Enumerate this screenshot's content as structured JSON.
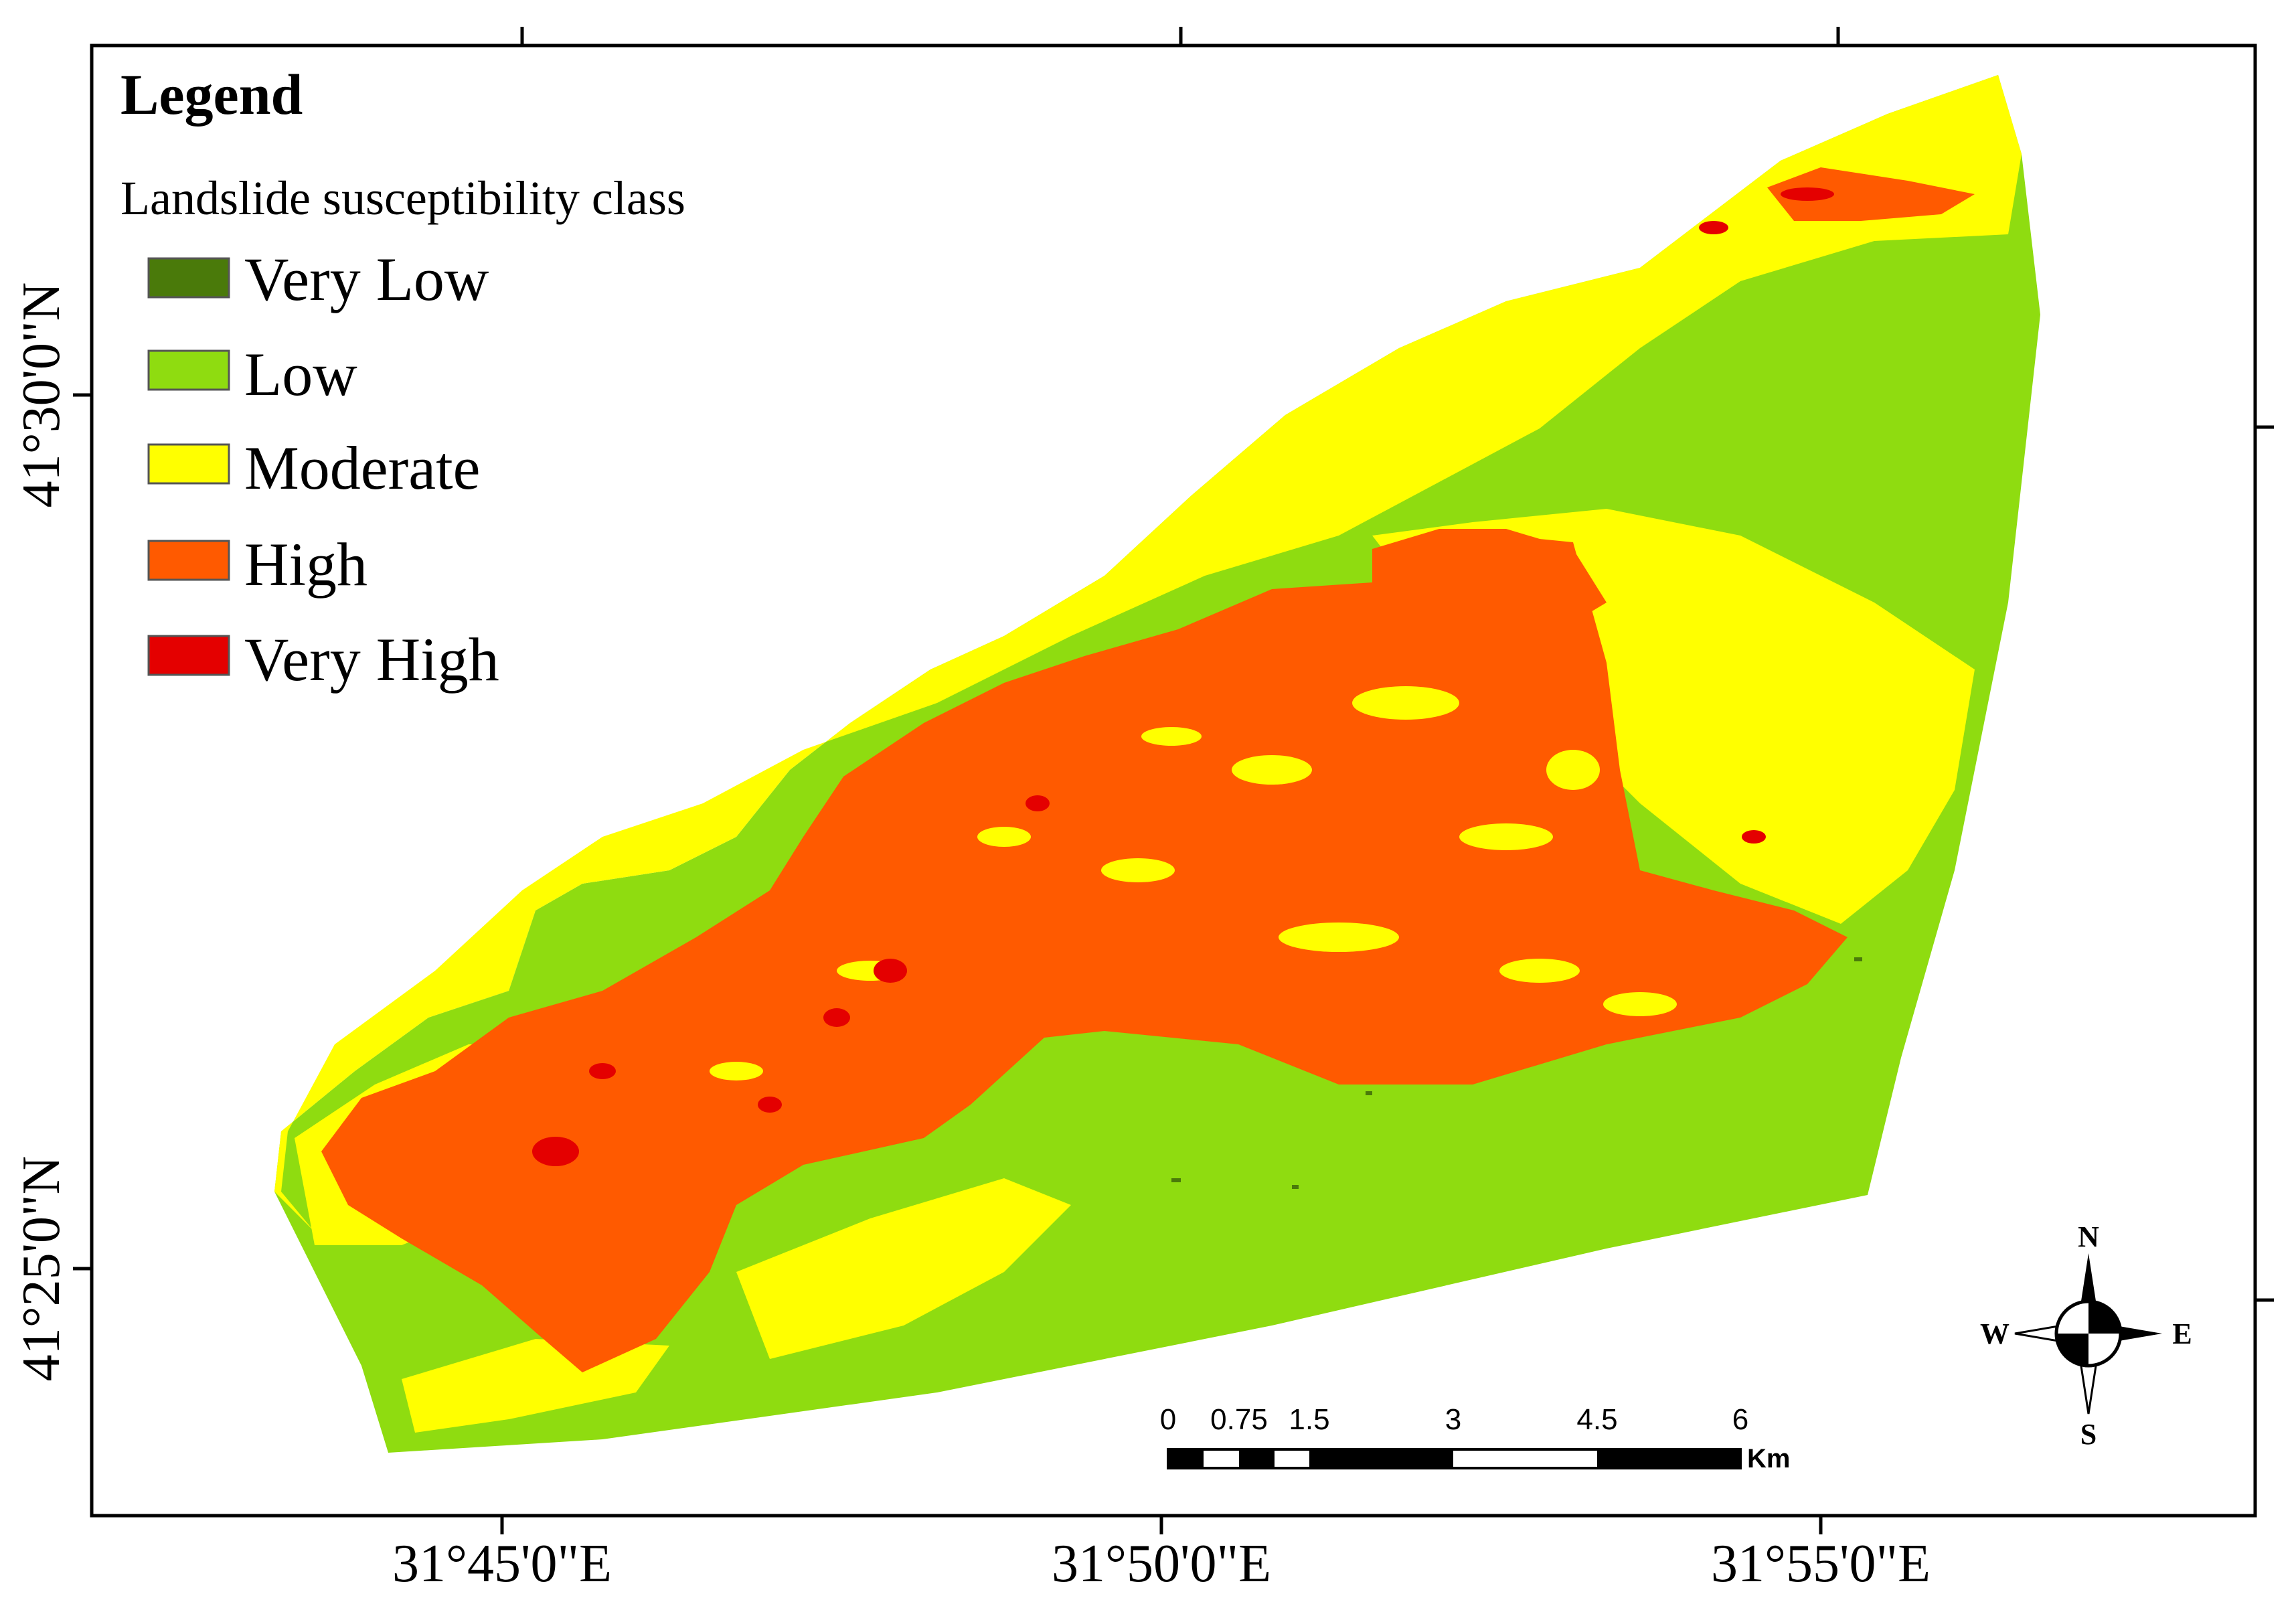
{
  "legend": {
    "title": "Legend",
    "subtitle": "Landslide susceptibility class",
    "classes": [
      {
        "label": "Very Low",
        "color": "#4a7a0a"
      },
      {
        "label": "Low",
        "color": "#8fdc10"
      },
      {
        "label": "Moderate",
        "color": "#ffff00"
      },
      {
        "label": "High",
        "color": "#ff5a00"
      },
      {
        "label": "Very High",
        "color": "#e40000"
      }
    ]
  },
  "graticule": {
    "longitudes": [
      "31°45'0\"E",
      "31°50'0\"E",
      "31°55'0\"E"
    ],
    "latitudes": [
      "41°30'0\"N",
      "41°25'0\"N"
    ]
  },
  "scale_bar": {
    "ticks": [
      "0",
      "0.75",
      "1.5",
      "3",
      "4.5",
      "6"
    ],
    "unit": "Km"
  },
  "north_arrow": {
    "n": "N",
    "s": "S",
    "e": "E",
    "w": "W"
  }
}
